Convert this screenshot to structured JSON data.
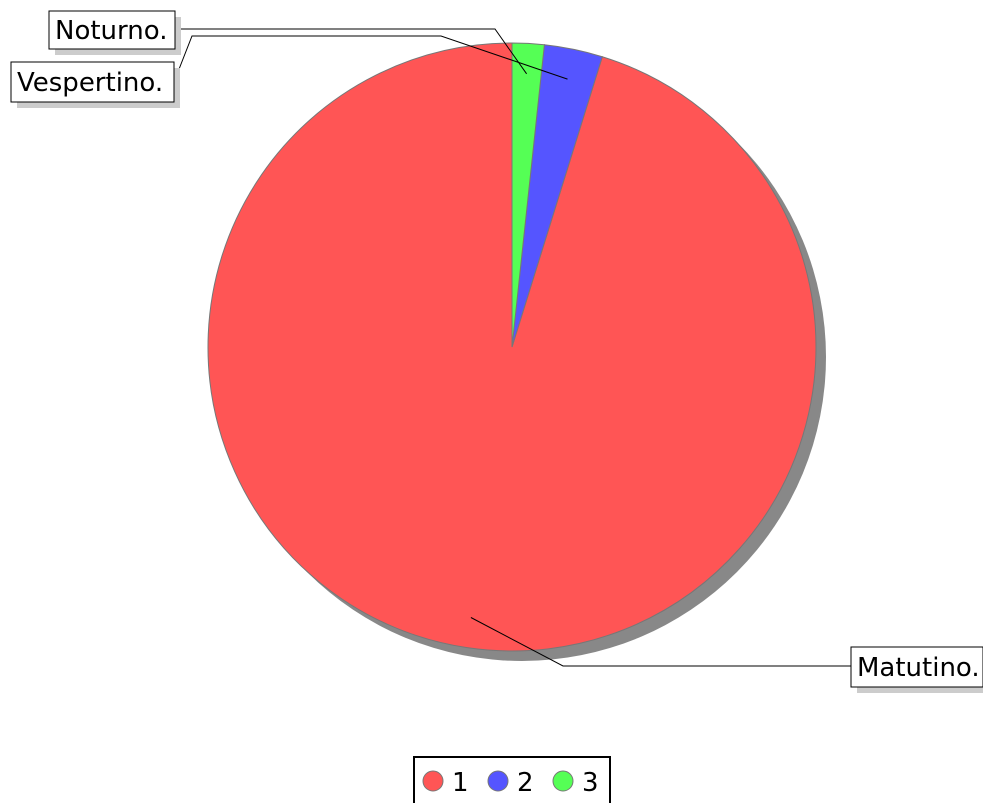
{
  "chart_data": {
    "type": "pie",
    "slices": [
      {
        "name": "Matutino.",
        "value": 95.2,
        "color": "#ff5555"
      },
      {
        "name": "Vespertino.",
        "value": 3.1,
        "color": "#5555ff"
      },
      {
        "name": "Noturno.",
        "value": 1.7,
        "color": "#55ff55"
      }
    ],
    "legend": {
      "placement": "bottom-center",
      "items": [
        {
          "label": "1",
          "color": "#ff5555"
        },
        {
          "label": "2",
          "color": "#5555ff"
        },
        {
          "label": "3",
          "color": "#55ff55"
        }
      ]
    },
    "start_angle": "12 o'clock",
    "direction": "counter-clockwise",
    "shadow": true
  }
}
